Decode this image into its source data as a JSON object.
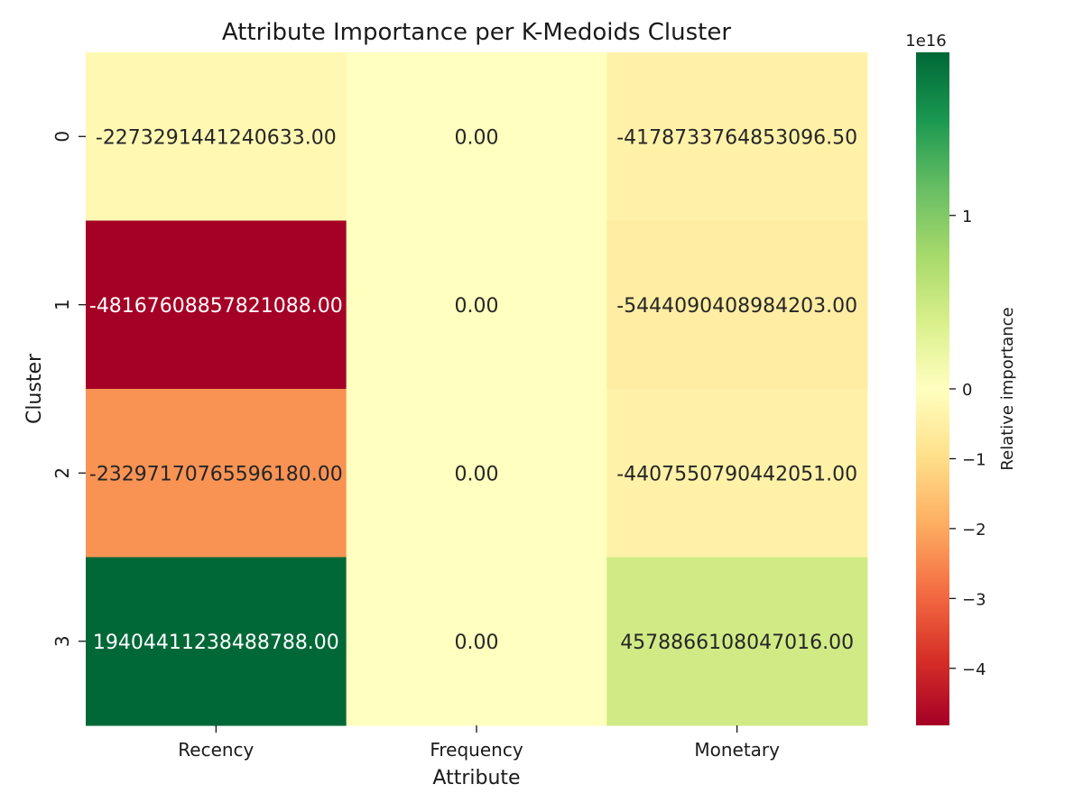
{
  "chart_data": {
    "type": "heatmap",
    "title": "Attribute Importance per K-Medoids Cluster",
    "xlabel": "Attribute",
    "ylabel": "Cluster",
    "x_categories": [
      "Recency",
      "Frequency",
      "Monetary"
    ],
    "y_categories": [
      "0",
      "1",
      "2",
      "3"
    ],
    "values": [
      [
        -2273291441240633.0,
        0.0,
        -4178733764853096.5
      ],
      [
        -4.816760885782109e+16,
        0.0,
        -5444090408984203.0
      ],
      [
        -2.329717076559618e+16,
        0.0,
        -4407550790442051.0
      ],
      [
        1.9404411238488788e+16,
        0.0,
        4578866108047016.0
      ]
    ],
    "cell_labels": [
      [
        "-2273291441240633.00",
        "0.00",
        "-4178733764853096.50"
      ],
      [
        "-48167608857821088.00",
        "0.00",
        "-5444090408984203.00"
      ],
      [
        "-23297170765596180.00",
        "0.00",
        "-4407550790442051.00"
      ],
      [
        "19404411238488788.00",
        "0.00",
        "4578866108047016.00"
      ]
    ],
    "colormap": "RdYlGn",
    "colorbar": {
      "label": "Relative importance",
      "offset_text": "1e16",
      "vmin": -48167608857821088,
      "vmax": 19404411238488788,
      "ticks": [
        1,
        0,
        -1,
        -2,
        -3,
        -4
      ],
      "tick_labels": [
        "1",
        "0",
        "−1",
        "−2",
        "−3",
        "−4"
      ],
      "tick_scale": 1e+16
    },
    "grid": false
  }
}
